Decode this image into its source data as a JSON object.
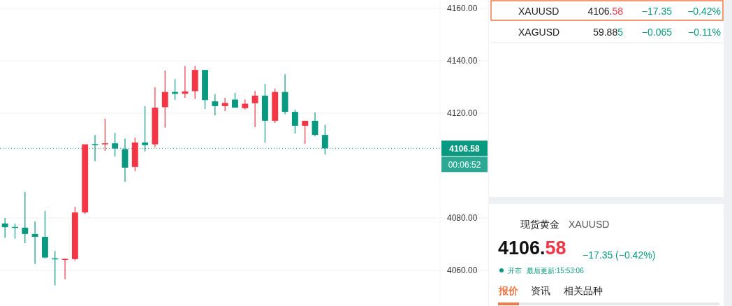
{
  "chart_data": [
    {
      "type": "candlestick",
      "categories": [
        null,
        null,
        null,
        null,
        null,
        null,
        null,
        null,
        null,
        null,
        null,
        null,
        null,
        null,
        null,
        null,
        null,
        null,
        null,
        null,
        null,
        null,
        null,
        null,
        null,
        null,
        null,
        null,
        null,
        null,
        null,
        null,
        null,
        null,
        null,
        null,
        null,
        null,
        null,
        null,
        null,
        null,
        null,
        null
      ],
      "ohlc": [
        [
          4077.9,
          4080.0,
          4072.5,
          4076.5
        ],
        [
          4076.6,
          4077.9,
          4072.1,
          4076.4
        ],
        [
          4076.3,
          4089.9,
          4070.4,
          4073.9
        ],
        [
          4073.9,
          4078.7,
          4062.5,
          4072.8
        ],
        [
          4072.8,
          4082.7,
          4064.5,
          4064.9
        ],
        [
          4064.6,
          4067.4,
          4054.3,
          4064.4
        ],
        [
          4064.2,
          4064.5,
          4056.7,
          4064.4
        ],
        [
          4064.3,
          4084.3,
          4063.8,
          4082.1
        ],
        [
          4082.1,
          4108.1,
          4081.6,
          4108.1
        ],
        [
          4108.2,
          4111.7,
          4101.7,
          4108.0
        ],
        [
          4108.2,
          4117.9,
          4105.6,
          4108.5
        ],
        [
          4108.5,
          4112.5,
          4103.5,
          4106.5
        ],
        [
          4106.3,
          4110.3,
          4093.9,
          4099.2
        ],
        [
          4099.5,
          4110.7,
          4097.9,
          4108.8
        ],
        [
          4108.8,
          4122.7,
          4105.4,
          4107.8
        ],
        [
          4108.1,
          4129.9,
          4107.0,
          4122.1
        ],
        [
          4122.3,
          4136.3,
          4114.5,
          4128.1
        ],
        [
          4128.1,
          4133.0,
          4125.1,
          4127.4
        ],
        [
          4127.4,
          4138.1,
          4125.9,
          4128.3
        ],
        [
          4128.4,
          4138.1,
          4125.4,
          4136.5
        ],
        [
          4136.5,
          4136.5,
          4121.6,
          4125.0
        ],
        [
          4124.5,
          4127.2,
          4119.2,
          4122.7
        ],
        [
          4122.7,
          4125.9,
          4120.8,
          4123.9
        ],
        [
          4125.2,
          4127.8,
          4122.1,
          4122.1
        ],
        [
          4121.9,
          4125.3,
          4121.4,
          4123.6
        ],
        [
          4123.8,
          4128.5,
          4114.7,
          4126.7
        ],
        [
          4126.7,
          4131.2,
          4108.8,
          4117.1
        ],
        [
          4117.1,
          4129.4,
          4116.3,
          4128.1
        ],
        [
          4128.1,
          4134.9,
          4119.6,
          4120.5
        ],
        [
          4120.5,
          4121.3,
          4112.3,
          4115.2
        ],
        [
          4115.2,
          4117.1,
          4108.3,
          4117.1
        ],
        [
          4117.1,
          4120.3,
          4111.2,
          4111.7
        ],
        [
          4111.7,
          4115.5,
          4104.3,
          4106.58
        ],
        null,
        null,
        null,
        null,
        null,
        null,
        null,
        null,
        null,
        null,
        null
      ],
      "colors": [
        "#089981",
        "#089981",
        "#089981",
        "#089981",
        "#089981",
        "#089981",
        "#f23645",
        "#f23645",
        "#f23645",
        "#089981",
        "#f23645",
        "#089981",
        "#089981",
        "#f23645",
        "#089981",
        "#f23645",
        "#f23645",
        "#089981",
        "#f23645",
        "#f23645",
        "#089981",
        "#089981",
        "#f23645",
        "#089981",
        "#f23645",
        "#f23645",
        "#089981",
        "#f23645",
        "#089981",
        "#089981",
        "#f23645",
        "#089981",
        "#089981",
        null,
        null,
        null,
        null,
        null,
        null,
        null,
        null,
        null,
        null,
        null
      ],
      "ylim": [
        4046.4,
        4163.2
      ],
      "yticks": [
        {
          "value": 4060,
          "label": "4060.00"
        },
        {
          "value": 4080,
          "label": "4080.00"
        },
        {
          "value": 4120,
          "label": "4120.00"
        },
        {
          "value": 4140,
          "label": "4140.00"
        },
        {
          "value": 4160,
          "label": "4160.00"
        }
      ],
      "grid": "y",
      "ref_lines": [
        {
          "axis": "y",
          "value": 4106.58,
          "label": "4106.58",
          "color": "#089981",
          "line_style": "dotted"
        }
      ],
      "annotations": [
        "00:06:52"
      ]
    },
    {
      "type": "other",
      "annotations": [
        "XAUUSD",
        "4106.58",
        "−17.35",
        "−0.42%",
        "XAGUSD",
        "59.885",
        "−0.065",
        "−0.11%",
        "现货黄金",
        "XAUUSD",
        "4106.58",
        "−17.35 (−0.42%)",
        "开市",
        "最后更新:15:53:06",
        "报价",
        "资讯",
        "相关品种"
      ]
    }
  ]
}
